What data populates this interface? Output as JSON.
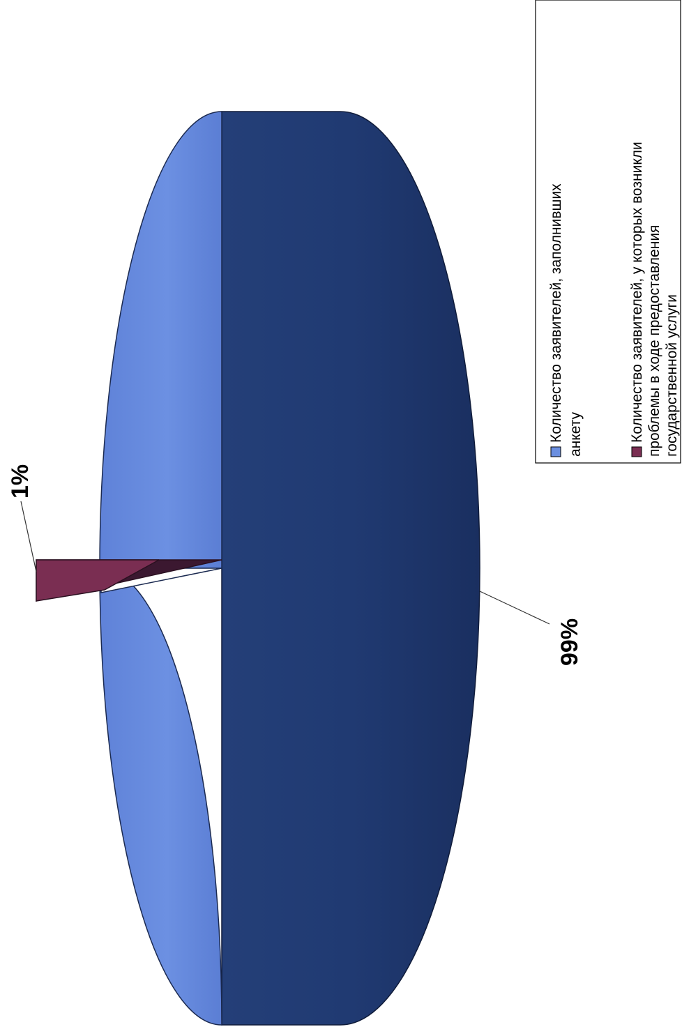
{
  "chart_data": {
    "type": "pie",
    "orientation": "rotated-90-clockwise",
    "three_d": true,
    "title": "",
    "categories": [
      "Количество заявителей, заполнивших анкету",
      "Количество заявителей, у которых возникли проблемы в ходе предоставления государственной услуги"
    ],
    "values": [
      99,
      1
    ],
    "labels": [
      "99%",
      "1%"
    ],
    "colors": [
      "#6b8fe0",
      "#7a2e52"
    ],
    "legend": {
      "placement": "right",
      "entries": [
        {
          "lines": [
            "Количество заявителей, заполнивших",
            "анкету"
          ],
          "color": "#6b8fe0"
        },
        {
          "lines": [
            "Количество заявителей, у которых возникли",
            "проблемы в ходе предоставления",
            "государственной услуги"
          ],
          "color": "#7a2e52"
        }
      ]
    }
  }
}
